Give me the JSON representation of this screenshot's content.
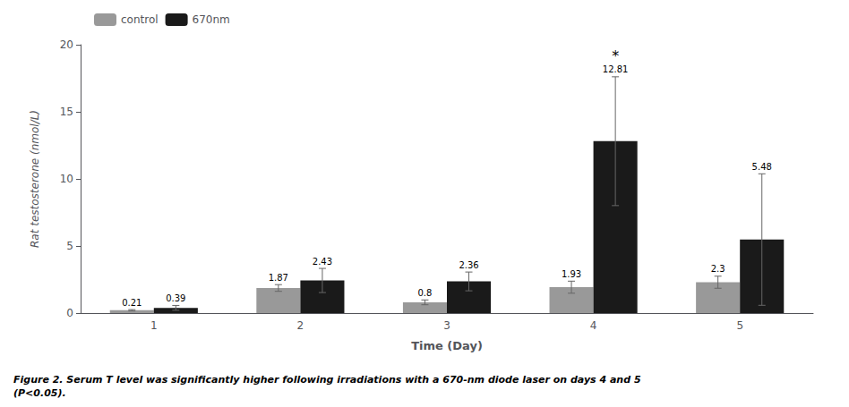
{
  "chart_data": {
    "type": "bar",
    "xlabel": "Time (Day)",
    "ylabel": "Rat testosterone (nmol/L)",
    "categories": [
      "1",
      "2",
      "3",
      "4",
      "5"
    ],
    "series": [
      {
        "name": "control",
        "color": "#999999",
        "values": [
          0.21,
          1.87,
          0.8,
          1.93,
          2.3
        ],
        "errors": [
          0.05,
          0.25,
          0.18,
          0.45,
          0.45
        ]
      },
      {
        "name": "670nm",
        "color": "#1a1a1a",
        "values": [
          0.39,
          2.43,
          2.36,
          12.81,
          5.48
        ],
        "errors": [
          0.18,
          0.9,
          0.7,
          4.8,
          4.9
        ]
      }
    ],
    "ylim": [
      0,
      20
    ],
    "yticks": [
      0,
      5,
      10,
      15,
      20
    ],
    "grid": false,
    "legend": "upper left",
    "data_labels": true,
    "annotations": [
      {
        "text": "*",
        "category": "4",
        "series": "670nm"
      }
    ],
    "caption": "Figure 2. Serum T level was significantly higher following irradiations with a 670-nm diode laser on days 4 and 5\n(P<0.05)."
  }
}
